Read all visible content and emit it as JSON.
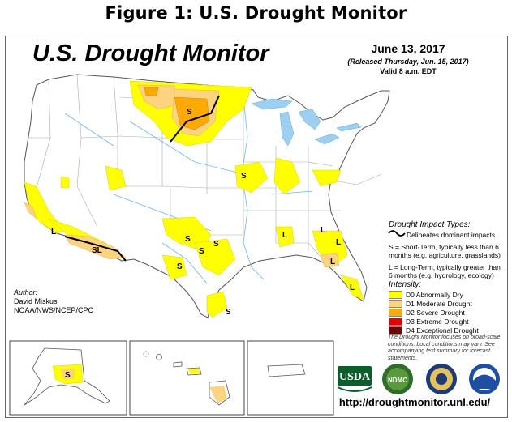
{
  "figure_title": "Figure 1: U.S. Drought Monitor",
  "map_title": "U.S. Drought Monitor",
  "date": "June 13, 2017",
  "released": "(Released Thursday, Jun. 15, 2017)",
  "valid": "Valid 8 a.m. EDT",
  "impact": {
    "heading": "Drought Impact Types:",
    "delineates": "Delineates dominant impacts",
    "short_term": "S = Short-Term, typically less than 6 months (e.g. agriculture, grasslands)",
    "long_term": "L = Long-Term, typically greater than 6 months (e.g. hydrology, ecology)"
  },
  "intensity": {
    "heading": "Intensity:",
    "items": [
      {
        "label": "D0 Abnormally Dry",
        "color": "#FFFF00"
      },
      {
        "label": "D1 Moderate Drought",
        "color": "#FCD37F"
      },
      {
        "label": "D2 Severe Drought",
        "color": "#FFAA00"
      },
      {
        "label": "D3 Extreme Drought",
        "color": "#E60000"
      },
      {
        "label": "D4 Exceptional Drought",
        "color": "#730000"
      }
    ]
  },
  "author": {
    "heading": "Author:",
    "name": "David Miskus",
    "org": "NOAA/NWS/NCEP/CPC"
  },
  "note": "The Drought Monitor focuses on broad-scale conditions. Local conditions may vary. See accompanying text summary for forecast statements.",
  "url": "http://droughtmonitor.unl.edu/",
  "logos": {
    "usda": "USDA",
    "ndmc": "NDMC"
  },
  "impact_labels": {
    "s": "S",
    "l": "L",
    "sl": "SL"
  },
  "colors": {
    "d0": "#FFFF00",
    "d1": "#FCD37F",
    "d2": "#FFAA00",
    "water": "#9DD0F0",
    "border": "#555555"
  }
}
